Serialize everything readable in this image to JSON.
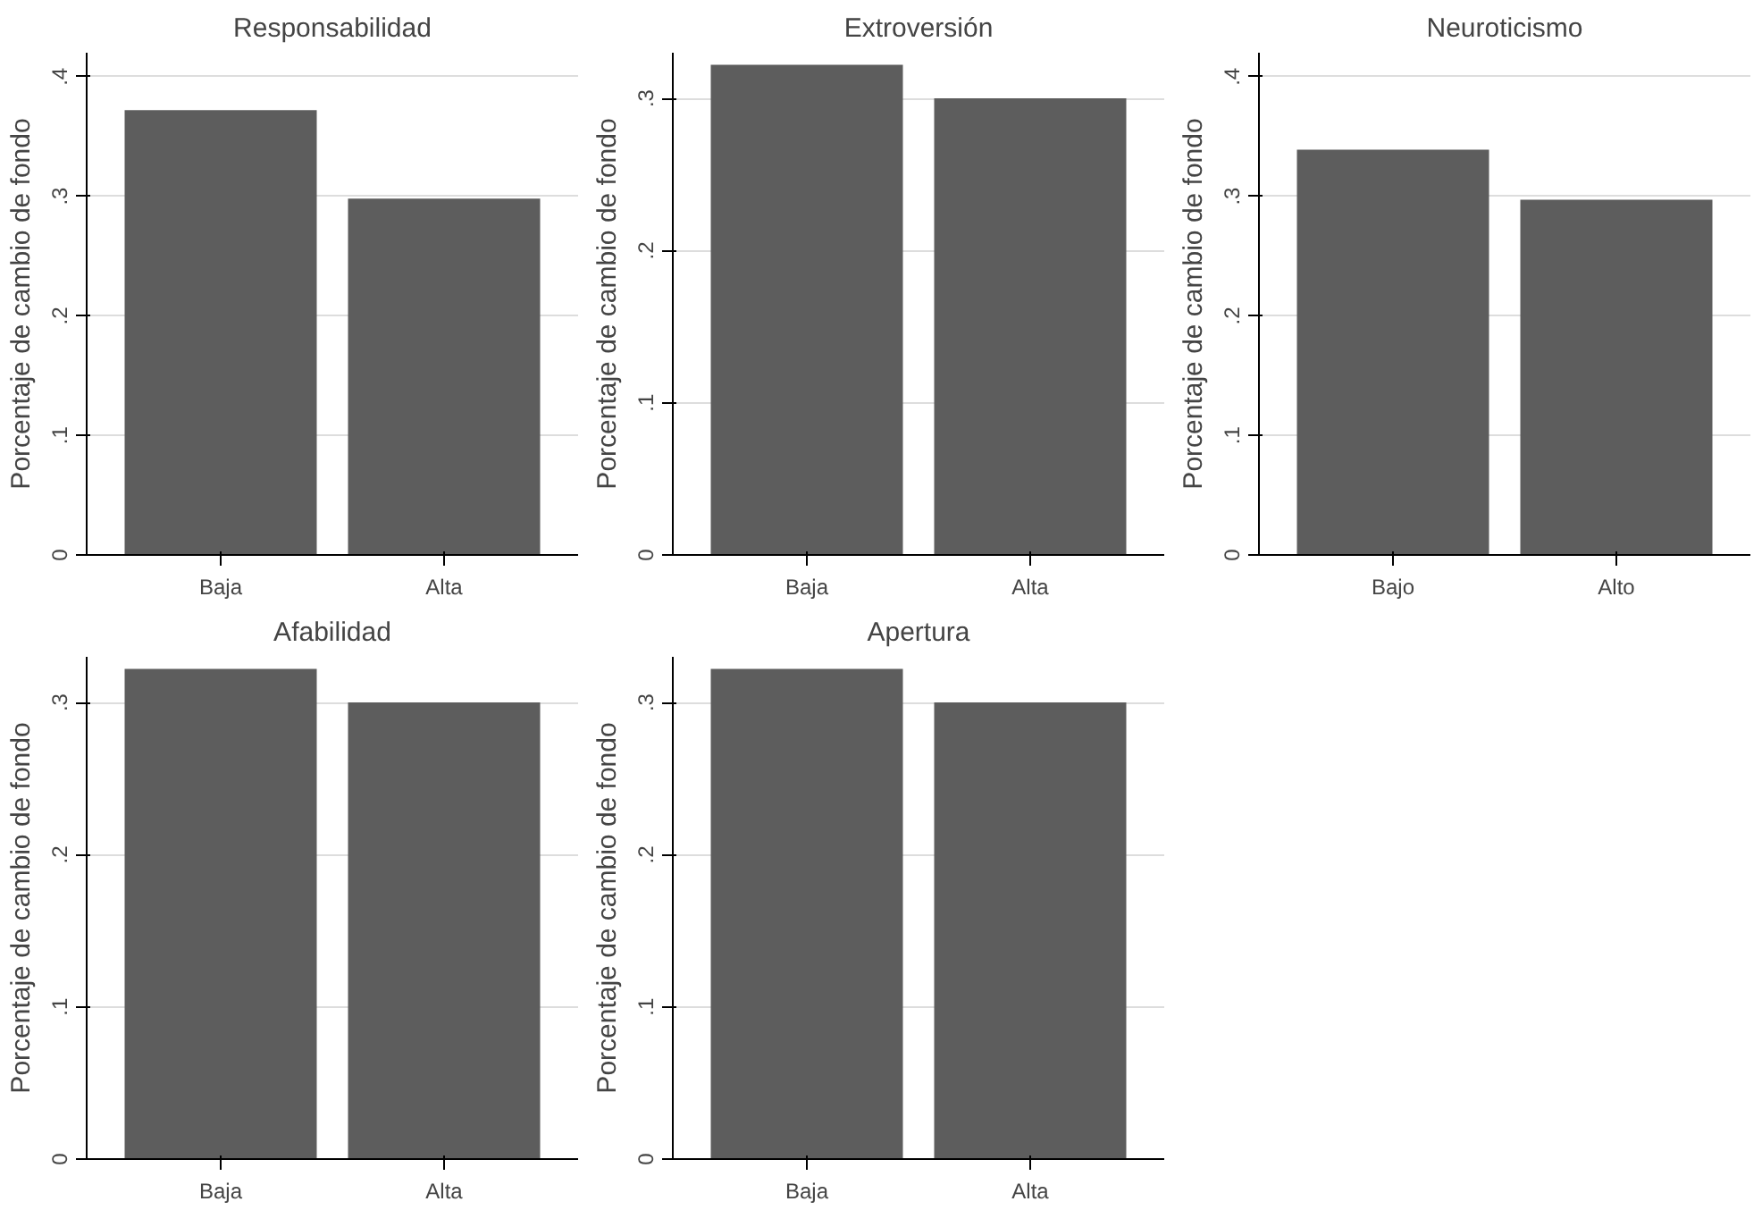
{
  "chart_data": [
    {
      "type": "bar",
      "title": "Responsabilidad",
      "ylabel": "Porcentaje de cambio de fondo",
      "categories": [
        "Baja",
        "Alta"
      ],
      "values": [
        0.372,
        0.298
      ],
      "color": "#5d5d5d",
      "ylim": [
        0,
        0.42
      ],
      "yticks": [
        0,
        {
          "value": 0.1,
          "label": ".1"
        },
        {
          "value": 0.2,
          "label": ".2"
        },
        {
          "value": 0.3,
          "label": ".3"
        },
        {
          "value": 0.4,
          "label": ".4"
        }
      ],
      "grid": "y"
    },
    {
      "type": "bar",
      "title": "Extroversión",
      "ylabel": "Porcentaje de cambio de fondo",
      "categories": [
        "Baja",
        "Alta"
      ],
      "values": [
        0.322,
        0.3
      ],
      "color": "#5d5d5d",
      "ylim": [
        0,
        0.33
      ],
      "yticks": [
        0,
        {
          "value": 0.1,
          "label": ".1"
        },
        {
          "value": 0.2,
          "label": ".2"
        },
        {
          "value": 0.3,
          "label": ".3"
        }
      ],
      "grid": "y"
    },
    {
      "type": "bar",
      "title": "Neuroticismo",
      "ylabel": "Porcentaje de cambio de fondo",
      "categories": [
        "Bajo",
        "Alto"
      ],
      "values": [
        0.339,
        0.297
      ],
      "color": "#5d5d5d",
      "ylim": [
        0,
        0.42
      ],
      "yticks": [
        0,
        {
          "value": 0.1,
          "label": ".1"
        },
        {
          "value": 0.2,
          "label": ".2"
        },
        {
          "value": 0.3,
          "label": ".3"
        },
        {
          "value": 0.4,
          "label": ".4"
        }
      ],
      "grid": "y"
    },
    {
      "type": "bar",
      "title": "Afabilidad",
      "ylabel": "Porcentaje de cambio de fondo",
      "categories": [
        "Baja",
        "Alta"
      ],
      "values": [
        0.322,
        0.3
      ],
      "color": "#5d5d5d",
      "ylim": [
        0,
        0.33
      ],
      "yticks": [
        0,
        {
          "value": 0.1,
          "label": ".1"
        },
        {
          "value": 0.2,
          "label": ".2"
        },
        {
          "value": 0.3,
          "label": ".3"
        }
      ],
      "grid": "y"
    },
    {
      "type": "bar",
      "title": "Apertura",
      "ylabel": "Porcentaje de cambio de fondo",
      "categories": [
        "Baja",
        "Alta"
      ],
      "values": [
        0.322,
        0.3
      ],
      "color": "#5d5d5d",
      "ylim": [
        0,
        0.33
      ],
      "yticks": [
        0,
        {
          "value": 0.1,
          "label": ".1"
        },
        {
          "value": 0.2,
          "label": ".2"
        },
        {
          "value": 0.3,
          "label": ".3"
        }
      ],
      "grid": "y"
    }
  ]
}
